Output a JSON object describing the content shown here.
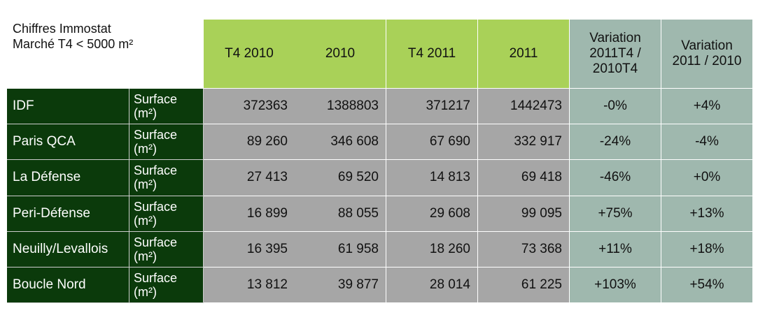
{
  "header": {
    "title": [
      "Chiffres Immostat",
      "Marché T4 < 5000 m²"
    ],
    "columns": [
      [
        "T4 2010"
      ],
      [
        "2010"
      ],
      [
        "T4 2011"
      ],
      [
        "2011"
      ],
      [
        "Variation",
        "2011T4 /",
        "2010T4"
      ],
      [
        "Variation",
        "2011 / 2010"
      ]
    ]
  },
  "table": {
    "rows": [
      {
        "region": "IDF",
        "unit": [
          "Surface",
          "(m²)"
        ],
        "values": [
          "372363",
          "1388803",
          "371217",
          "1442473",
          "-0%",
          "+4%"
        ]
      },
      {
        "region": "Paris QCA",
        "unit": [
          "Surface",
          "(m²)"
        ],
        "values": [
          "89 260",
          "346 608",
          "67 690",
          "332 917",
          "-24%",
          "-4%"
        ]
      },
      {
        "region": "La Défense",
        "unit": [
          "Surface",
          "(m²)"
        ],
        "values": [
          "27 413",
          "69 520",
          "14 813",
          "69 418",
          "-46%",
          "+0%"
        ]
      },
      {
        "region": "Peri-Défense",
        "unit": [
          "Surface",
          "(m²)"
        ],
        "values": [
          "16 899",
          "88 055",
          "29 608",
          "99 095",
          "+75%",
          "+13%"
        ]
      },
      {
        "region": "Neuilly/Levallois",
        "unit": [
          "Surface",
          "(m²)"
        ],
        "values": [
          "16 395",
          "61 958",
          "18 260",
          "73 368",
          "+11%",
          "+18%"
        ]
      },
      {
        "region": "Boucle Nord",
        "unit": [
          "Surface",
          "(m²)"
        ],
        "values": [
          "13 812",
          "39 877",
          "28 014",
          "61 225",
          "+103%",
          "+54%"
        ]
      }
    ]
  }
}
